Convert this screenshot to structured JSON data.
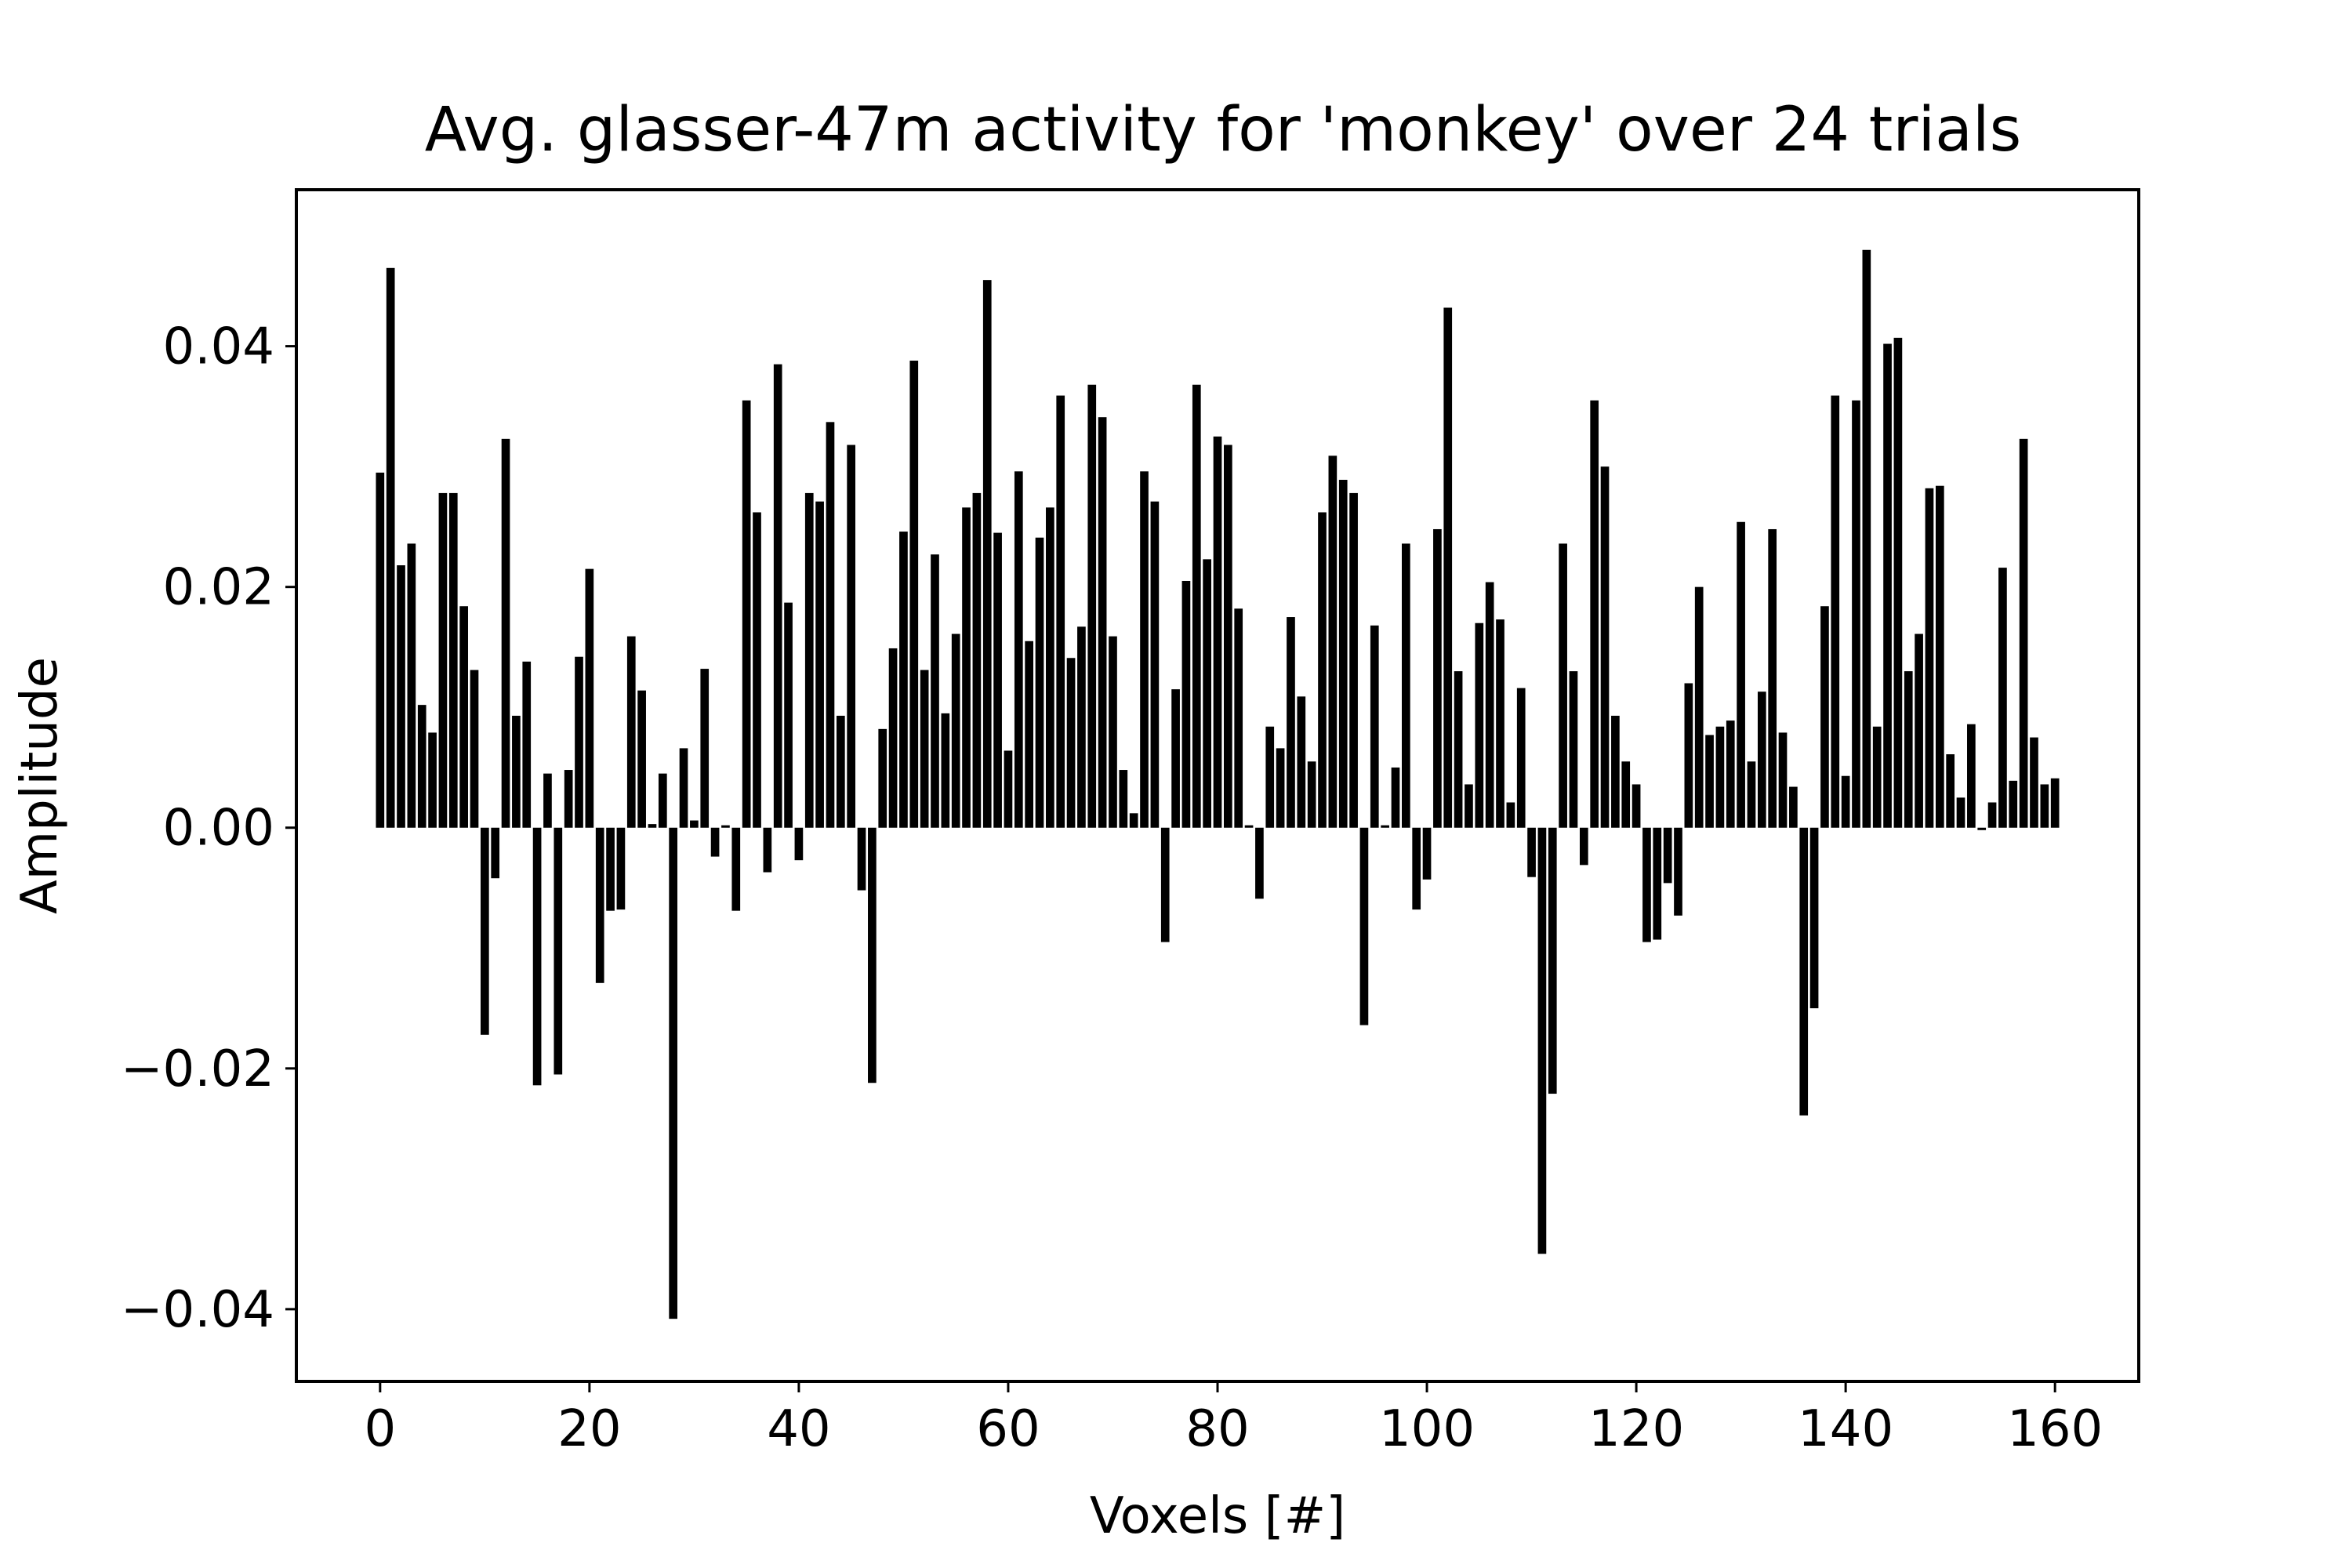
{
  "chart_data": {
    "type": "bar",
    "title": "Avg. glasser-47m activity for 'monkey' over 24 trials",
    "xlabel": "Voxels [#]",
    "ylabel": "Amplitude",
    "xlim": [
      -8,
      168
    ],
    "ylim": [
      -0.046,
      0.053
    ],
    "xticks": [
      {
        "value": 0,
        "label": "0"
      },
      {
        "value": 20,
        "label": "20"
      },
      {
        "value": 40,
        "label": "40"
      },
      {
        "value": 60,
        "label": "60"
      },
      {
        "value": 80,
        "label": "80"
      },
      {
        "value": 100,
        "label": "100"
      },
      {
        "value": 120,
        "label": "120"
      },
      {
        "value": 140,
        "label": "140"
      },
      {
        "value": 160,
        "label": "160"
      }
    ],
    "yticks": [
      {
        "value": -0.04,
        "label": "−0.04"
      },
      {
        "value": -0.02,
        "label": "−0.02"
      },
      {
        "value": 0.0,
        "label": "0.00"
      },
      {
        "value": 0.02,
        "label": "0.02"
      },
      {
        "value": 0.04,
        "label": "0.04"
      }
    ],
    "grid": false,
    "bar_color": "#000000",
    "values": [
      0.0295,
      0.0465,
      0.0218,
      0.0236,
      0.0102,
      0.0079,
      0.0278,
      0.0278,
      0.0184,
      0.0131,
      -0.0172,
      -0.0042,
      0.0323,
      0.0093,
      0.0138,
      -0.0214,
      0.0045,
      -0.0205,
      0.0048,
      0.0142,
      0.0215,
      -0.0129,
      -0.0069,
      -0.0068,
      0.0159,
      0.0114,
      0.0003,
      0.0045,
      -0.0408,
      0.0066,
      0.0006,
      0.0132,
      -0.0024,
      0.0002,
      -0.0069,
      0.0355,
      0.0262,
      -0.0037,
      0.0385,
      0.0187,
      -0.0027,
      0.0278,
      0.0271,
      0.0337,
      0.0093,
      0.0318,
      -0.0052,
      -0.0212,
      0.0082,
      0.0149,
      0.0246,
      0.0388,
      0.0131,
      0.0227,
      0.0095,
      0.0161,
      0.0266,
      0.0278,
      0.0455,
      0.0245,
      0.0064,
      0.0296,
      0.0155,
      0.0241,
      0.0266,
      0.0359,
      0.0141,
      0.0167,
      0.0368,
      0.0341,
      0.0159,
      0.0048,
      0.0012,
      0.0296,
      0.0271,
      -0.0095,
      0.0115,
      0.0205,
      0.0368,
      0.0223,
      0.0325,
      0.0318,
      0.0182,
      0.0002,
      -0.0059,
      0.0084,
      0.0066,
      0.0175,
      0.0109,
      0.0055,
      0.0262,
      0.0309,
      0.0289,
      0.0278,
      -0.0164,
      0.0168,
      0.0002,
      0.005,
      0.0236,
      -0.0068,
      -0.0043,
      0.0248,
      0.0432,
      0.013,
      0.0036,
      0.017,
      0.0204,
      0.0173,
      0.0021,
      0.0116,
      -0.0041,
      -0.0354,
      -0.0221,
      0.0236,
      0.013,
      -0.0031,
      0.0355,
      0.03,
      0.0093,
      0.0055,
      0.0036,
      -0.0095,
      -0.0093,
      -0.0046,
      -0.0073,
      0.012,
      0.02,
      0.0077,
      0.0084,
      0.0089,
      0.0254,
      0.0055,
      0.0113,
      0.0248,
      0.0079,
      0.0034,
      -0.0239,
      -0.015,
      0.0184,
      0.0359,
      0.0043,
      0.0355,
      0.048,
      0.0084,
      0.0402,
      0.0407,
      0.013,
      0.0161,
      0.0282,
      0.0284,
      0.0061,
      0.0025,
      0.0086,
      -0.0002,
      0.0021,
      0.0216,
      0.0039,
      0.0323,
      0.0075,
      0.0036,
      0.0041
    ]
  }
}
